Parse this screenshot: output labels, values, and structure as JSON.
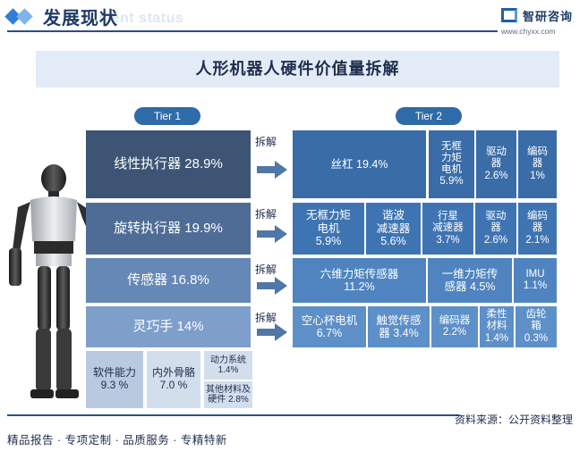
{
  "header": {
    "title": "发展现状",
    "subtitle_watermark": "ment status",
    "logo_name": "智研咨询",
    "logo_url": "www.chyxx.com"
  },
  "chart_data": {
    "type": "treemap",
    "title": "人形机器人硬件价值量拆解",
    "tier_labels": [
      "Tier 1",
      "Tier 2"
    ],
    "split_label": "拆解",
    "tier1": [
      {
        "name": "线性执行器",
        "label": "线性执行器 28.9%",
        "value": 28.9,
        "tier2": [
          {
            "label": "丝杠 19.4%",
            "value": 19.4
          },
          {
            "label": "无框\n力矩\n电机\n5.9%",
            "value": 5.9
          },
          {
            "label": "驱动\n器\n2.6%",
            "value": 2.6
          },
          {
            "label": "编码\n器\n1%",
            "value": 1
          }
        ]
      },
      {
        "name": "旋转执行器",
        "label": "旋转执行器 19.9%",
        "value": 19.9,
        "tier2": [
          {
            "label": "无框力矩\n电机\n5.9%",
            "value": 5.9
          },
          {
            "label": "谐波\n减速器\n5.6%",
            "value": 5.6
          },
          {
            "label": "行星\n减速器\n3.7%",
            "value": 3.7
          },
          {
            "label": "驱动\n器\n2.6%",
            "value": 2.6
          },
          {
            "label": "编码\n器\n2.1%",
            "value": 2.1
          }
        ]
      },
      {
        "name": "传感器",
        "label": "传感器 16.8%",
        "value": 16.8,
        "tier2": [
          {
            "label": "六维力矩传感器\n11.2%",
            "value": 11.2
          },
          {
            "label": "一维力矩传\n感器 4.5%",
            "value": 4.5
          },
          {
            "label": "IMU\n1.1%",
            "value": 1.1
          }
        ]
      },
      {
        "name": "灵巧手",
        "label": "灵巧手 14%",
        "value": 14,
        "tier2": [
          {
            "label": "空心杯电机\n6.7%",
            "value": 6.7
          },
          {
            "label": "触觉传感\n器 3.4%",
            "value": 3.4
          },
          {
            "label": "编码器\n2.2%",
            "value": 2.2
          },
          {
            "label": "柔性\n材料\n1.4%",
            "value": 1.4
          },
          {
            "label": "齿轮\n箱\n0.3%",
            "value": 0.3
          }
        ]
      }
    ],
    "others": [
      {
        "label": "软件能力\n9.3 %",
        "value": 9.3
      },
      {
        "label": "内外骨骼\n7.0 %",
        "value": 7.0
      },
      {
        "label": "动力系统\n1.4%",
        "value": 1.4
      },
      {
        "label": "其他材料及\n硬件 2.8%",
        "value": 2.8
      }
    ],
    "colors": {
      "tier1_row1": "#3d5475",
      "tier1_row2": "#4e6c96",
      "tier1_row3": "#6688b6",
      "tier1_row4": "#7f9fcb",
      "tier2_row1": "#3a6ca8",
      "tier2_row2": "#3f74b2",
      "tier2_row3": "#4f84c0",
      "tier2_row4": "#5d8fc8",
      "others_dark": "#b9c9df",
      "others_light": "#d3deec",
      "arrow": "#4f77a8"
    }
  },
  "footer": {
    "source": "资料来源：公开资料整理",
    "slogan": "精品报告 · 专项定制 · 品质服务 · 专精特新"
  }
}
